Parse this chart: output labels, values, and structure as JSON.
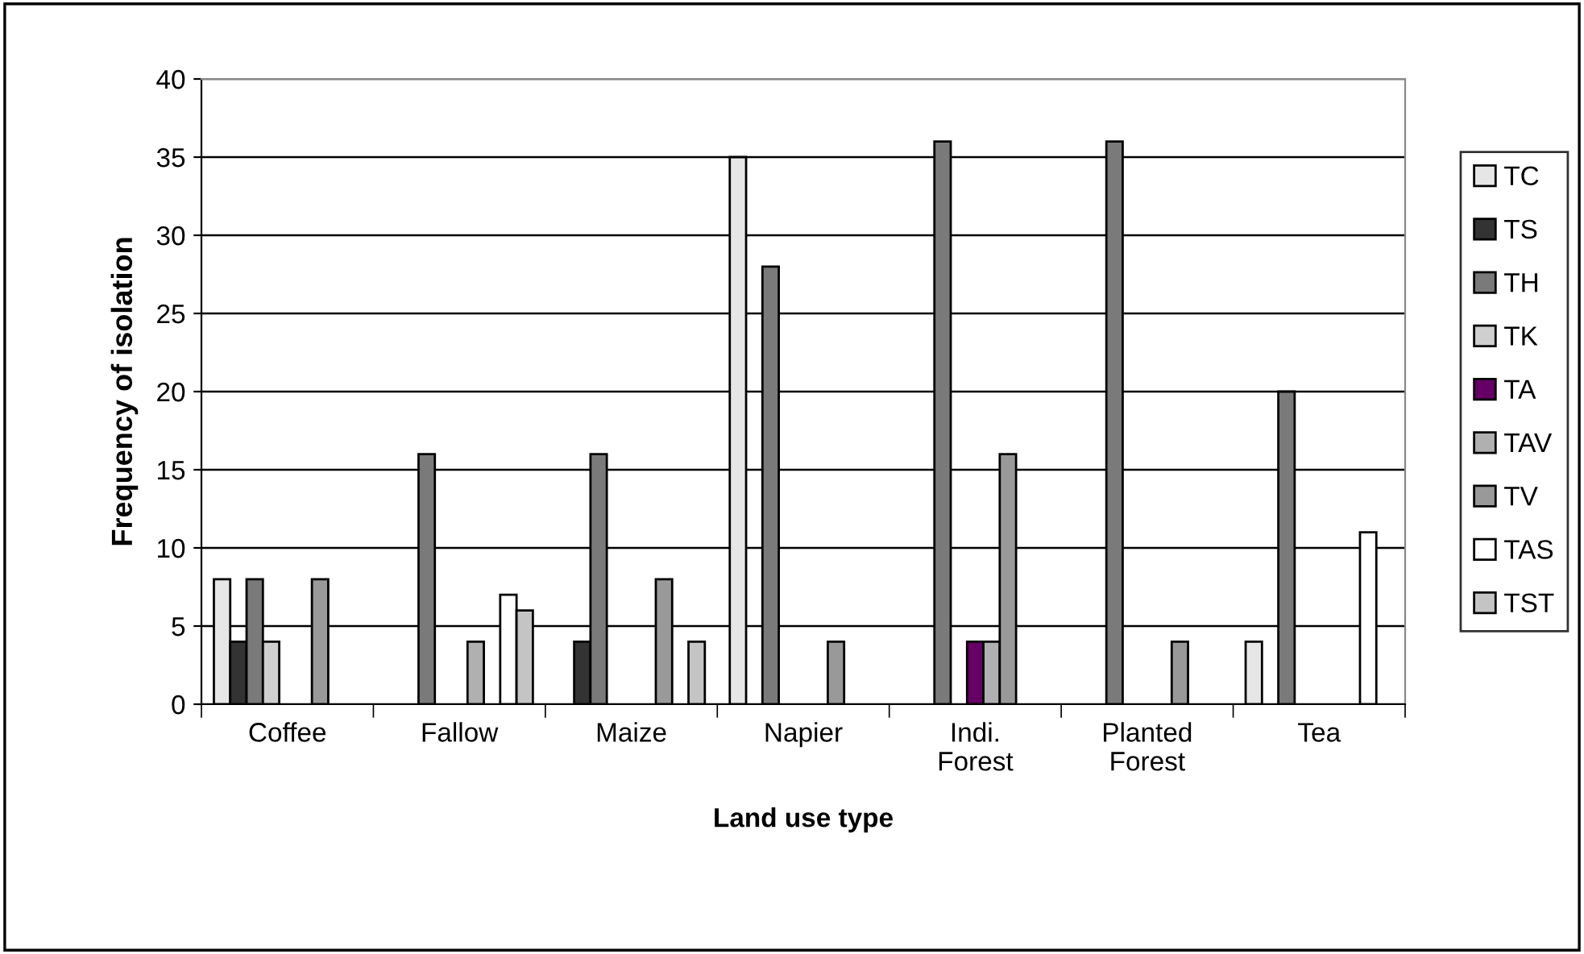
{
  "chart_data": {
    "type": "bar",
    "xlabel": "Land use type",
    "ylabel": "Frequency of isolation",
    "categories": [
      "Coffee",
      "Fallow",
      "Maize",
      "Napier",
      "Indi.\nForest",
      "Planted\nForest",
      "Tea"
    ],
    "series": [
      {
        "name": "TC",
        "color": "#e6e6e6",
        "values": [
          8,
          null,
          null,
          35,
          null,
          null,
          4
        ]
      },
      {
        "name": "TS",
        "color": "#333333",
        "values": [
          4,
          null,
          4,
          null,
          null,
          null,
          null
        ]
      },
      {
        "name": "TH",
        "color": "#7a7a7a",
        "values": [
          8,
          16,
          16,
          28,
          36,
          36,
          20
        ]
      },
      {
        "name": "TK",
        "color": "#cfcfcf",
        "values": [
          4,
          null,
          null,
          null,
          null,
          null,
          null
        ]
      },
      {
        "name": "TA",
        "color": "#660066",
        "values": [
          null,
          null,
          null,
          null,
          4,
          null,
          null
        ]
      },
      {
        "name": "TAV",
        "color": "#b0b0b0",
        "values": [
          null,
          4,
          null,
          null,
          4,
          null,
          null
        ]
      },
      {
        "name": "TV",
        "color": "#999999",
        "values": [
          8,
          null,
          8,
          4,
          16,
          4,
          null
        ]
      },
      {
        "name": "TAS",
        "color": "#ffffff",
        "values": [
          null,
          7,
          null,
          null,
          null,
          null,
          11
        ]
      },
      {
        "name": "TST",
        "color": "#c4c4c4",
        "values": [
          null,
          6,
          4,
          null,
          null,
          null,
          null
        ]
      }
    ],
    "ylim": [
      0,
      40
    ],
    "yticks": [
      0,
      5,
      10,
      15,
      20,
      25,
      30,
      35,
      40
    ],
    "grid": "y",
    "legend": "right"
  }
}
